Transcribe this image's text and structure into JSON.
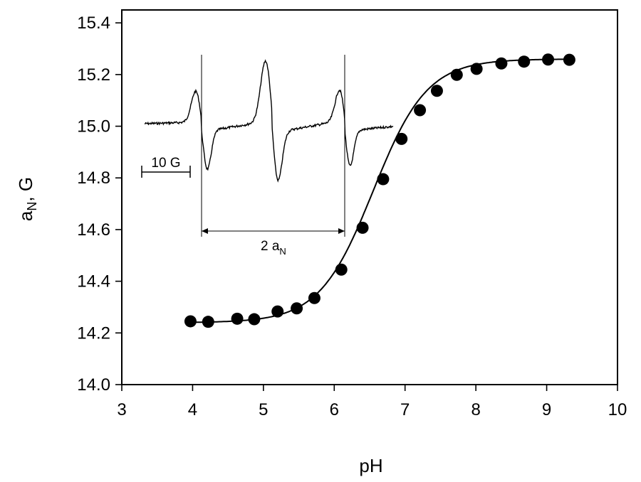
{
  "chart_data": {
    "type": "scatter",
    "xlabel": "pH",
    "ylabel_main": "a",
    "ylabel_sub": "N",
    "ylabel_suffix": ", G",
    "xlim": [
      3,
      10
    ],
    "ylim": [
      14.0,
      15.45
    ],
    "x_ticks": [
      3,
      4,
      5,
      6,
      7,
      8,
      9,
      10
    ],
    "y_ticks": [
      14.0,
      14.2,
      14.4,
      14.6,
      14.8,
      15.0,
      15.2,
      15.4
    ],
    "y_tick_labels": [
      "14.0",
      "14.2",
      "14.4",
      "14.6",
      "14.8",
      "15.0",
      "15.2",
      "15.4"
    ],
    "grid": false,
    "series": [
      {
        "marker": "filled-circle",
        "color": "#000000",
        "x": [
          3.97,
          4.22,
          4.63,
          4.87,
          5.2,
          5.47,
          5.72,
          6.1,
          6.4,
          6.69,
          6.95,
          7.21,
          7.45,
          7.73,
          8.01,
          8.36,
          8.68,
          9.02,
          9.32
        ],
        "y": [
          14.245,
          14.243,
          14.255,
          14.253,
          14.283,
          14.295,
          14.335,
          14.445,
          14.607,
          14.795,
          14.951,
          15.062,
          15.137,
          15.199,
          15.222,
          15.243,
          15.25,
          15.258,
          15.257
        ]
      }
    ],
    "fit_curve": {
      "model": "sigmoid",
      "low": 14.24,
      "high": 15.26,
      "pKa": 6.55,
      "slope": 0.38
    },
    "inset": {
      "scale_bar_label": "10 G",
      "spacing_label_main": "2 a",
      "spacing_label_sub": "N"
    }
  }
}
